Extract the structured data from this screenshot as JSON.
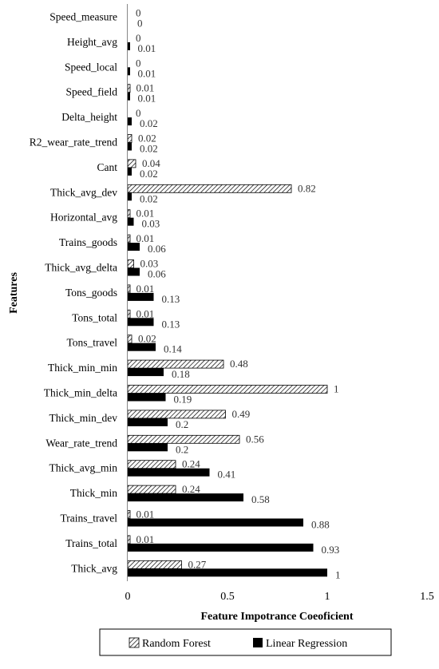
{
  "chart_data": {
    "type": "bar",
    "orientation": "horizontal",
    "title": "",
    "xlabel": "Feature Impotrance Coeoficient",
    "ylabel": "Features",
    "xlim": [
      0,
      1.5
    ],
    "xticks": [
      "0",
      "0.5",
      "1",
      "1.5"
    ],
    "grid": false,
    "legend_position": "bottom",
    "categories": [
      "Speed_measure",
      "Height_avg",
      "Speed_local",
      "Speed_field",
      "Delta_height",
      "R2_wear_rate_trend",
      "Cant",
      "Thick_avg_dev",
      "Horizontal_avg",
      "Trains_goods",
      "Thick_avg_delta",
      "Tons_goods",
      "Tons_total",
      "Tons_travel",
      "Thick_min_min",
      "Thick_min_delta",
      "Thick_min_dev",
      "Wear_rate_trend",
      "Thick_avg_min",
      "Thick_min",
      "Trains_travel",
      "Trains_total",
      "Thick_avg"
    ],
    "series": [
      {
        "name": "Random Forest",
        "pattern": "diagonal-hatch",
        "values": [
          0,
          0,
          0,
          0.01,
          0,
          0.02,
          0.04,
          0.82,
          0.01,
          0.01,
          0.03,
          0.01,
          0.01,
          0.02,
          0.48,
          1,
          0.49,
          0.56,
          0.24,
          0.24,
          0.01,
          0.01,
          0.27
        ],
        "labels": [
          "0",
          "0",
          "0",
          "0.01",
          "0",
          "0.02",
          "0.04",
          "0.82",
          "0.01",
          "0.01",
          "0.03",
          "0.01",
          "0.01",
          "0.02",
          "0.48",
          "1",
          "0.49",
          "0.56",
          "0.24",
          "0.24",
          "0.01",
          "0.01",
          "0.27"
        ]
      },
      {
        "name": "Linear Regression",
        "color": "#000000",
        "values": [
          0,
          0.01,
          0.01,
          0.01,
          0.02,
          0.02,
          0.02,
          0.02,
          0.03,
          0.06,
          0.06,
          0.13,
          0.13,
          0.14,
          0.18,
          0.19,
          0.2,
          0.2,
          0.41,
          0.58,
          0.88,
          0.93,
          1
        ],
        "labels": [
          "0",
          "0.01",
          "0.01",
          "0.01",
          "0.02",
          "0.02",
          "0.02",
          "0.02",
          "0.03",
          "0.06",
          "0.06",
          "0.13",
          "0.13",
          "0.14",
          "0.18",
          "0.19",
          "0.2",
          "0.2",
          "0.41",
          "0.58",
          "0.88",
          "0.93",
          "1"
        ]
      }
    ]
  }
}
